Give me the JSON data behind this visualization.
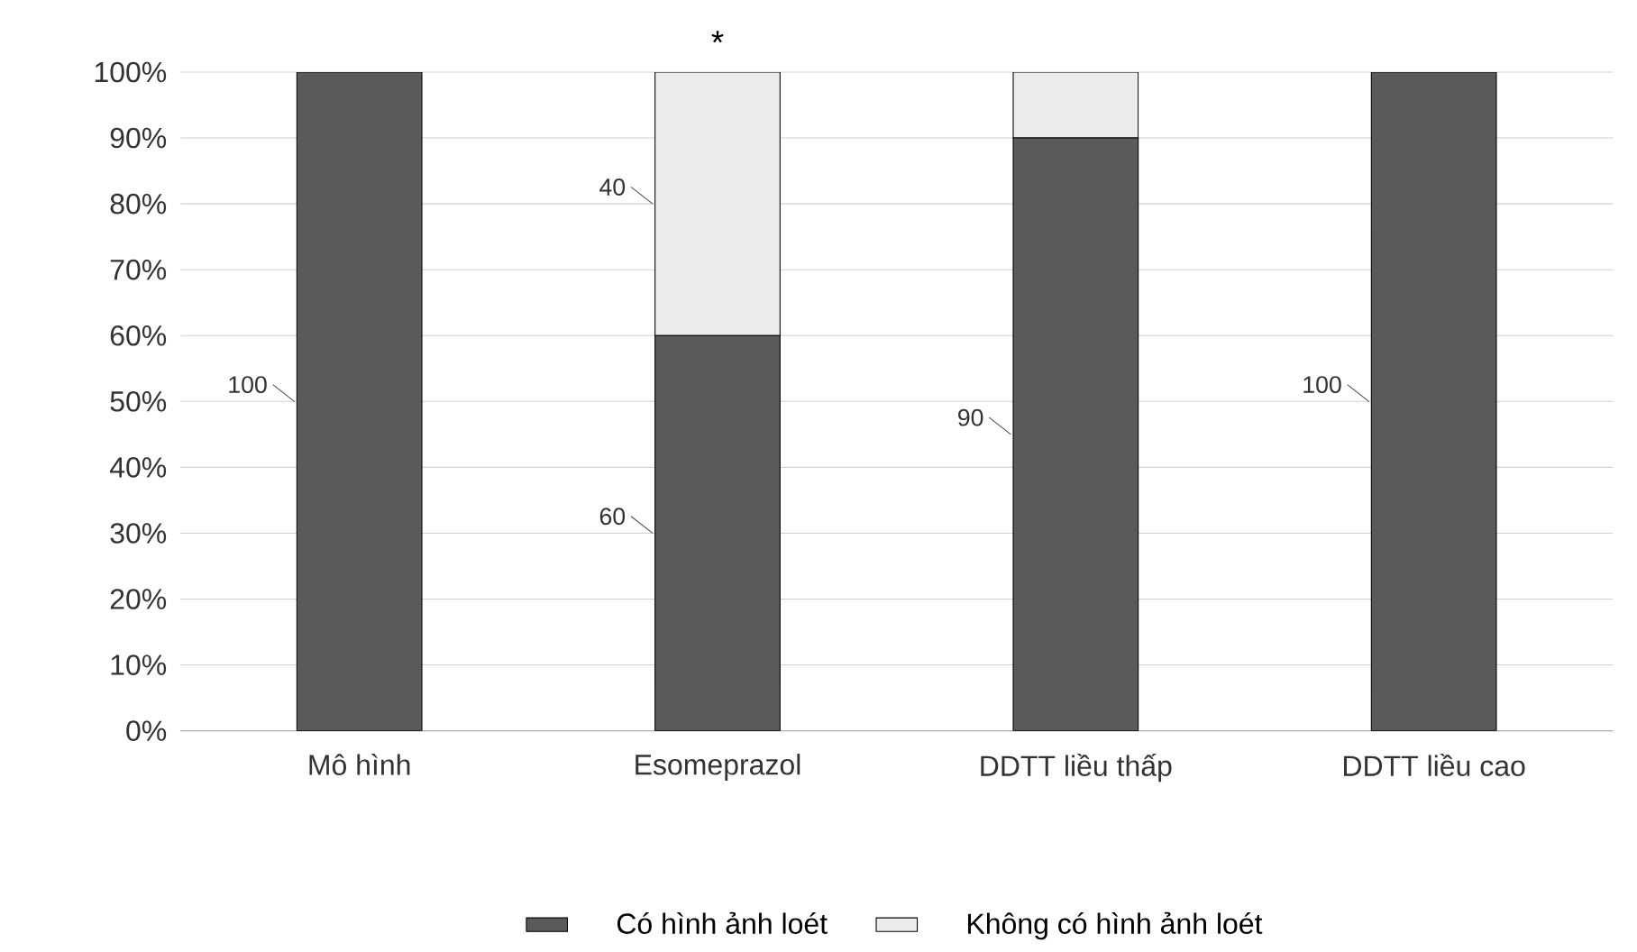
{
  "chart_data": {
    "type": "bar",
    "stacked": true,
    "categories": [
      "Mô hình",
      "Esomeprazol",
      "DDTT liều thấp",
      "DDTT liều cao"
    ],
    "series": [
      {
        "name": "Có hình ảnh loét",
        "color": "#5a5a5a",
        "values": [
          100,
          60,
          90,
          100
        ],
        "value_labels": [
          "100",
          "60",
          "90",
          "100"
        ]
      },
      {
        "name": "Không có hình ảnh loét",
        "color": "#ebebeb",
        "values": [
          0,
          40,
          10,
          0
        ],
        "value_labels": [
          null,
          "40",
          null,
          null
        ]
      }
    ],
    "ylim": [
      0,
      100
    ],
    "yticks": [
      {
        "value": 0,
        "label": "0%"
      },
      {
        "value": 10,
        "label": "10%"
      },
      {
        "value": 20,
        "label": "20%"
      },
      {
        "value": 30,
        "label": "30%"
      },
      {
        "value": 40,
        "label": "40%"
      },
      {
        "value": 50,
        "label": "50%"
      },
      {
        "value": 60,
        "label": "60%"
      },
      {
        "value": 70,
        "label": "70%"
      },
      {
        "value": 80,
        "label": "80%"
      },
      {
        "value": 90,
        "label": "90%"
      },
      {
        "value": 100,
        "label": "100%"
      }
    ],
    "grid": "y",
    "legend": "bottom",
    "annotations": [
      {
        "text": "*",
        "x": "Esomeprazol",
        "y": 100
      }
    ]
  }
}
